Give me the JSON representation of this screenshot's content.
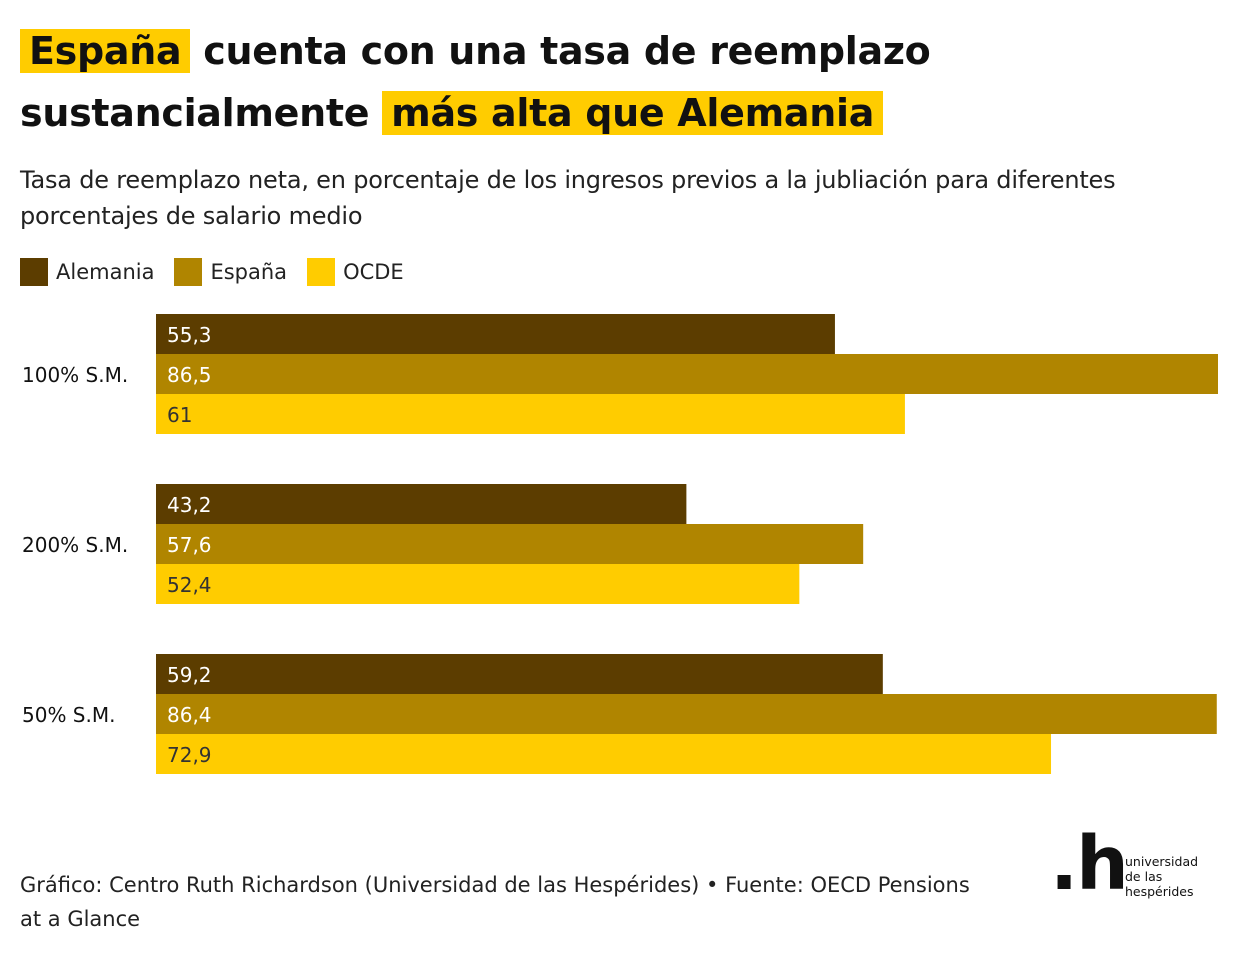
{
  "title": {
    "part1": "España",
    "part2": " cuenta con una tasa de reemplazo sustancialmente ",
    "part3": "más alta que Alemania"
  },
  "subtitle": "Tasa de reemplazo neta, en porcentaje de los ingresos previos a la jubliación para diferentes porcentajes de salario medio",
  "legend": [
    {
      "label": "Alemania",
      "color": "#5c3d00"
    },
    {
      "label": "España",
      "color": "#b08500"
    },
    {
      "label": "OCDE",
      "color": "#ffcc00"
    }
  ],
  "chart_data": {
    "type": "bar",
    "orientation": "horizontal",
    "categories": [
      "100% S.M.",
      "200% S.M.",
      "50% S.M."
    ],
    "series": [
      {
        "name": "Alemania",
        "values": [
          55.3,
          43.2,
          59.2
        ],
        "labels": [
          "55,3",
          "43,2",
          "59,2"
        ],
        "color": "#5c3d00",
        "label_color": "#ffffff"
      },
      {
        "name": "España",
        "values": [
          86.5,
          57.6,
          86.4
        ],
        "labels": [
          "86,5",
          "57,6",
          "86,4"
        ],
        "color": "#b08500",
        "label_color": "#ffffff"
      },
      {
        "name": "OCDE",
        "values": [
          61,
          52.4,
          72.9
        ],
        "labels": [
          "61",
          "52,4",
          "72,9"
        ],
        "color": "#ffcc00",
        "label_color": "#333333"
      }
    ],
    "xlim": [
      0,
      86.5
    ],
    "grid": false,
    "legend_position": "top-left"
  },
  "footer": "Gráfico: Centro Ruth Richardson (Universidad de las Hespérides) • Fuente: OECD Pensions at a Glance",
  "logo": {
    "mark": ".h",
    "lines": [
      "universidad",
      "de las",
      "hespérides"
    ]
  }
}
